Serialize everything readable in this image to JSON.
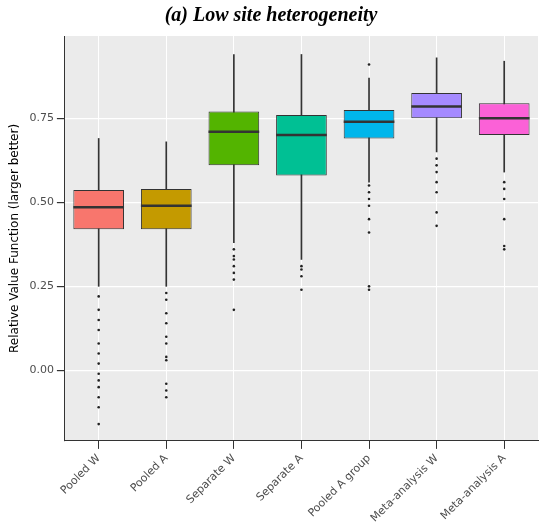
{
  "chart_data": {
    "type": "box",
    "title": "(a) Low site heterogeneity",
    "y_label": "Relative Value Function (larger better)",
    "categories": [
      "Pooled W",
      "Pooled A",
      "Separate W",
      "Separate A",
      "Pooled A group",
      "Meta-analysis W",
      "Meta-analysis A"
    ],
    "colors": [
      "#F8766D",
      "#C49A00",
      "#53B400",
      "#00C094",
      "#00B6EB",
      "#A58AFF",
      "#FB61D7"
    ],
    "whisker_low": [
      0.25,
      0.25,
      0.38,
      0.33,
      0.56,
      0.65,
      0.59
    ],
    "q1": [
      0.42,
      0.42,
      0.61,
      0.58,
      0.69,
      0.75,
      0.7
    ],
    "median": [
      0.485,
      0.49,
      0.71,
      0.7,
      0.74,
      0.785,
      0.75
    ],
    "q3": [
      0.537,
      0.54,
      0.77,
      0.76,
      0.775,
      0.825,
      0.795
    ],
    "whisker_high": [
      0.69,
      0.68,
      0.94,
      0.94,
      0.87,
      0.93,
      0.92
    ],
    "outliers": [
      [
        -0.16,
        -0.11,
        -0.08,
        -0.05,
        -0.03,
        -0.01,
        0.02,
        0.05,
        0.08,
        0.12,
        0.15,
        0.18,
        0.22
      ],
      [
        -0.08,
        -0.06,
        -0.04,
        0.03,
        0.04,
        0.08,
        0.1,
        0.14,
        0.17,
        0.21,
        0.23
      ],
      [
        0.18,
        0.27,
        0.29,
        0.31,
        0.33,
        0.34,
        0.36
      ],
      [
        0.24,
        0.28,
        0.3,
        0.31
      ],
      [
        0.24,
        0.25,
        0.41,
        0.45,
        0.49,
        0.51,
        0.53,
        0.55,
        0.91
      ],
      [
        0.43,
        0.47,
        0.53,
        0.56,
        0.59,
        0.61,
        0.63
      ],
      [
        0.36,
        0.37,
        0.45,
        0.51,
        0.54,
        0.56
      ]
    ],
    "ylim": [
      -0.21,
      0.995
    ],
    "yticks": [
      {
        "value": 0,
        "label": "0.00"
      },
      {
        "value": 0.25,
        "label": "0.25"
      },
      {
        "value": 0.5,
        "label": "0.50"
      },
      {
        "value": 0.75,
        "label": "0.75"
      }
    ],
    "grid": true
  }
}
